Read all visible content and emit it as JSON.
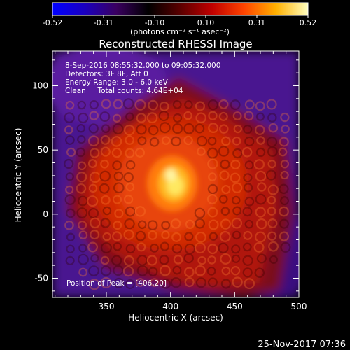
{
  "colorbar": {
    "ticks": [
      "-0.52",
      "-0.31",
      "-0.10",
      "0.10",
      "0.31",
      "0.52"
    ],
    "unit_label": "(photons cm⁻² s⁻¹ asec⁻²)",
    "range": [
      -0.52,
      0.52
    ],
    "stops": [
      "#0000ff",
      "#1a00c0",
      "#3a0060",
      "#000000",
      "#5a0000",
      "#c00000",
      "#ff4400",
      "#ffb000",
      "#ffffc0"
    ]
  },
  "chart_data": {
    "type": "heatmap",
    "title": "Reconstructed RHESSI Image",
    "xlabel": "Heliocentric X (arcsec)",
    "ylabel": "Heliocentric Y (arcsec)",
    "xlim": [
      308,
      500
    ],
    "ylim": [
      -65,
      127
    ],
    "x_ticks": [
      350,
      400,
      450,
      500
    ],
    "y_ticks": [
      -50,
      0,
      50,
      100
    ],
    "peak": [
      406,
      20
    ],
    "annotations": [
      "8-Sep-2016 08:55:32.000 to 09:05:32.000",
      "Detectors: 3F 8F, Att 0",
      "Energy Range: 3.0 - 6.0 keV",
      "Clean     Total counts: 4.64E+04"
    ],
    "peak_label": "Position of Peak = [406,20]"
  },
  "timestamp": "25-Nov-2017 07:36"
}
